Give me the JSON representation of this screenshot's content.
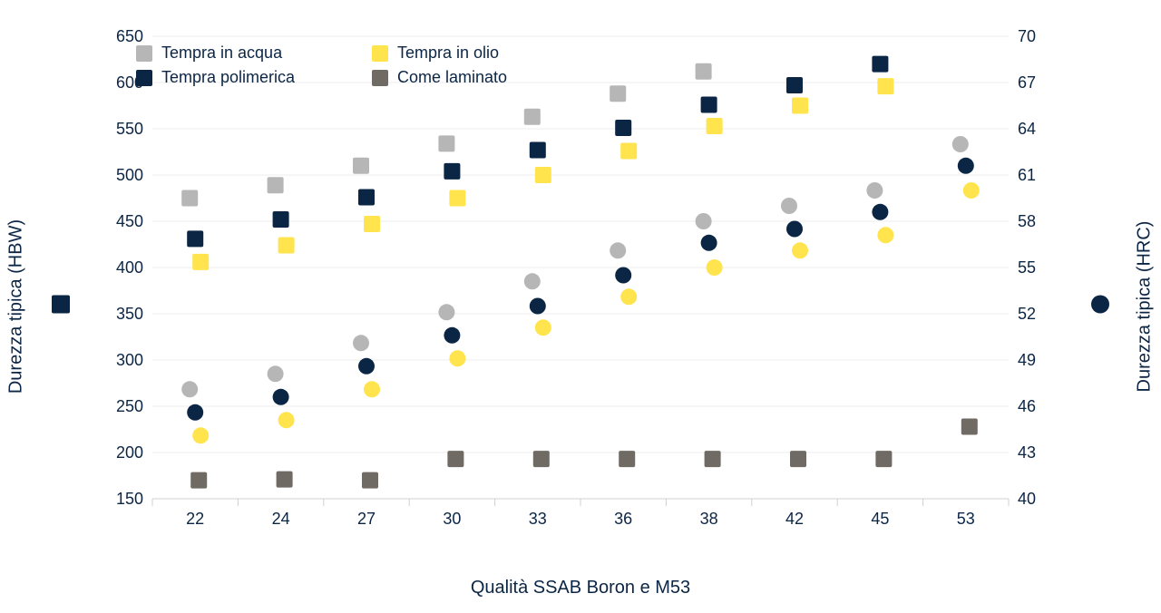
{
  "chart": {
    "type": "scatter-dual-axis",
    "background_color": "#ffffff",
    "grid_color": "#ececec",
    "text_color": "#0b2545",
    "font_family": "Arial",
    "x_axis": {
      "label": "Qualità SSAB Boron e M53",
      "label_fontsize": 20,
      "categories": [
        "22",
        "24",
        "27",
        "30",
        "33",
        "36",
        "38",
        "42",
        "45",
        "53"
      ],
      "tick_fontsize": 18,
      "cat_divider_color": "#d0d0d0"
    },
    "y_left": {
      "label": "Durezza tipica (HBW)",
      "label_fontsize": 20,
      "icon": "square",
      "icon_color": "#0b2545",
      "min": 150,
      "max": 650,
      "tick_step": 50,
      "tick_fontsize": 18
    },
    "y_right": {
      "label": "Durezza tipica (HRC)",
      "label_fontsize": 20,
      "icon": "circle",
      "icon_color": "#0b2545",
      "min": 40,
      "max": 70,
      "tick_step": 3,
      "tick_fontsize": 18
    },
    "marker_size_square": 18,
    "marker_size_circle": 18,
    "series": [
      {
        "name": "Tempra in acqua",
        "color": "#b6b6b6",
        "shape_hbw": "square",
        "shape_hrc": "circle",
        "hbw": [
          475,
          489,
          510,
          534,
          563,
          588,
          612,
          null,
          null,
          null
        ],
        "hrc": [
          47.1,
          48.1,
          50.1,
          52.1,
          54.1,
          56.1,
          58.0,
          59.0,
          60.0,
          63.0
        ]
      },
      {
        "name": "Tempra in olio",
        "color": "#ffe44d",
        "shape_hbw": "square",
        "shape_hrc": "circle",
        "hbw": [
          406,
          424,
          447,
          475,
          500,
          526,
          553,
          575,
          596,
          null
        ],
        "hrc": [
          44.1,
          45.1,
          47.1,
          49.1,
          51.1,
          53.1,
          55.0,
          56.1,
          57.1,
          60.0
        ]
      },
      {
        "name": "Tempra polimerica",
        "color": "#0b2545",
        "shape_hbw": "square",
        "shape_hrc": "circle",
        "hbw": [
          431,
          452,
          476,
          504,
          527,
          551,
          576,
          597,
          620,
          null
        ],
        "hrc": [
          45.6,
          46.6,
          48.6,
          50.6,
          52.5,
          54.5,
          56.6,
          57.5,
          58.6,
          61.6
        ]
      },
      {
        "name": "Come laminato",
        "color": "#6f6a63",
        "shape_hbw": "square",
        "shape_hrc": "circle",
        "hbw": [
          170,
          171,
          170,
          193,
          193,
          193,
          193,
          193,
          193,
          228
        ],
        "hrc": [
          null,
          null,
          null,
          null,
          null,
          null,
          null,
          null,
          null,
          null
        ]
      }
    ],
    "legend": {
      "position": "top-left-inside",
      "fontsize": 18,
      "rows": [
        [
          "Tempra in acqua",
          "Tempra in olio"
        ],
        [
          "Tempra polimerica",
          "Come laminato"
        ]
      ]
    }
  }
}
